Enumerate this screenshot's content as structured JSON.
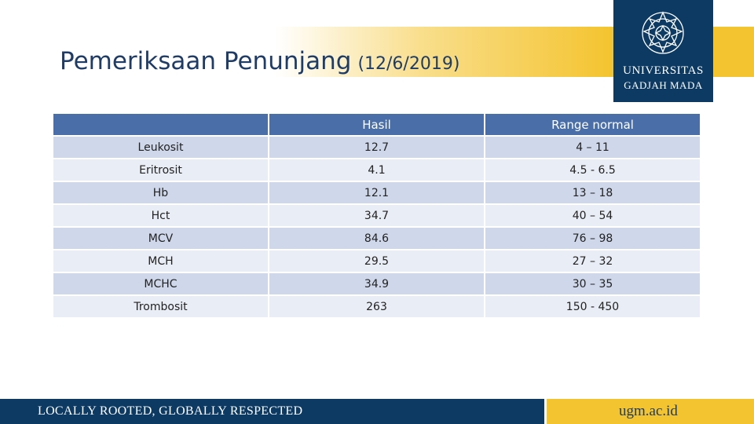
{
  "slide": {
    "title": "Pemeriksaan Penunjang",
    "date": "(12/6/2019)"
  },
  "logo": {
    "line1": "UNIVERSITAS",
    "line2": "GADJAH MADA"
  },
  "table": {
    "headers": [
      "",
      "Hasil",
      "Range normal"
    ],
    "rows": [
      {
        "name": "Leukosit",
        "hasil": "12.7",
        "range": "4 – 11"
      },
      {
        "name": "Eritrosit",
        "hasil": "4.1",
        "range": "4.5 - 6.5"
      },
      {
        "name": "Hb",
        "hasil": "12.1",
        "range": "13 – 18"
      },
      {
        "name": "Hct",
        "hasil": "34.7",
        "range": "40 – 54"
      },
      {
        "name": "MCV",
        "hasil": "84.6",
        "range": "76 – 98"
      },
      {
        "name": "MCH",
        "hasil": "29.5",
        "range": "27 – 32"
      },
      {
        "name": "MCHC",
        "hasil": "34.9",
        "range": "30 – 35"
      },
      {
        "name": "Trombosit",
        "hasil": "263",
        "range": "150 - 450"
      }
    ]
  },
  "footer": {
    "tagline": "LOCALLY ROOTED, GLOBALLY RESPECTED",
    "website": "ugm.ac.id"
  },
  "colors": {
    "navy": "#0c3a63",
    "gold": "#f4c430",
    "header_blue": "#4a6fa8"
  }
}
